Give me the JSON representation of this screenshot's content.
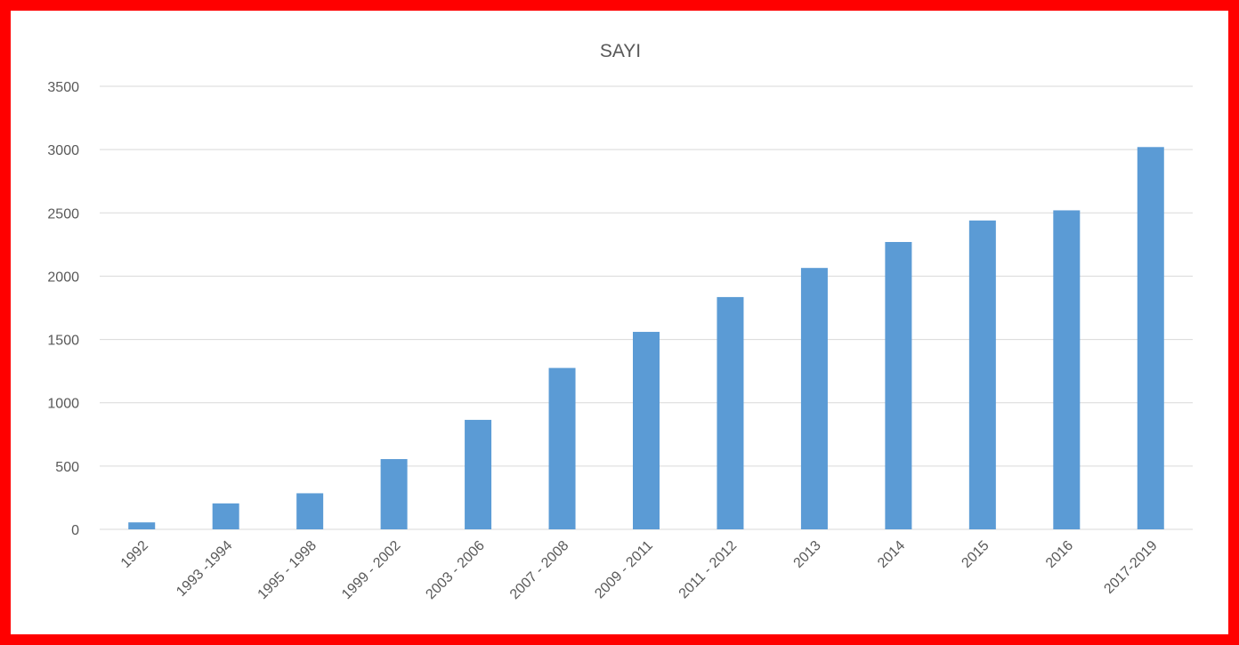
{
  "chart_data": {
    "type": "bar",
    "title": "SAYI",
    "xlabel": "",
    "ylabel": "",
    "categories": [
      "1992",
      "1993 -1994",
      "1995 - 1998",
      "1999 - 2002",
      "2003 - 2006",
      "2007 - 2008",
      "2009 - 2011",
      "2011 - 2012",
      "2013",
      "2014",
      "2015",
      "2016",
      "2017-2019"
    ],
    "values": [
      55,
      205,
      285,
      555,
      865,
      1275,
      1560,
      1835,
      2065,
      2270,
      2440,
      2520,
      3020
    ],
    "ylim": [
      0,
      3500
    ],
    "yticks": [
      0,
      500,
      1000,
      1500,
      2000,
      2500,
      3000,
      3500
    ],
    "grid": true,
    "legend": "none",
    "bar_color": "#5b9bd5",
    "grid_color": "#d9d9d9",
    "border_color": "#ff0000"
  }
}
